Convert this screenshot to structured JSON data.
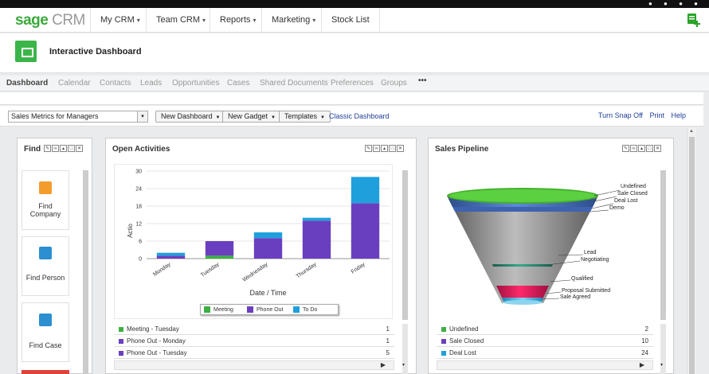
{
  "nav": {
    "logo_main": "sage",
    "logo_sub": "CRM",
    "items": [
      {
        "label": "My CRM",
        "chevron": "▾"
      },
      {
        "label": "Team CRM",
        "chevron": "▾"
      },
      {
        "label": "Reports",
        "chevron": "▾"
      },
      {
        "label": "Marketing",
        "chevron": "▾"
      },
      {
        "label": "Stock List",
        "chevron": ""
      }
    ],
    "add_icon": "add-list-icon"
  },
  "header": {
    "title": "Interactive Dashboard",
    "icon": "dashboard-icon"
  },
  "tabs": [
    "Dashboard",
    "Calendar",
    "Contacts",
    "Leads",
    "Opportunities",
    "Cases",
    "Shared Documents",
    "Preferences",
    "Groups",
    "•••"
  ],
  "toolbar": {
    "dashboard_select": "Sales Metrics for Managers",
    "new_dashboard": "New Dashboard",
    "new_gadget": "New Gadget",
    "templates": "Templates",
    "classic": "Classic Dashboard",
    "snap": "Turn Snap Off",
    "print": "Print",
    "help": "Help"
  },
  "find": {
    "title": "Find",
    "cards": [
      {
        "label_1": "Find",
        "label_2": "Company",
        "color": "#f39c2c",
        "icon": "company-icon"
      },
      {
        "label_1": "",
        "label_2": "Find Person",
        "color": "#2b8fd0",
        "icon": "person-icon"
      },
      {
        "label_1": "",
        "label_2": "Find Case",
        "color": "#2b8fd0",
        "icon": "case-icon"
      }
    ]
  },
  "activities": {
    "title": "Open Activities",
    "rows": [
      {
        "label": "Meeting - Tuesday",
        "value": "1",
        "color": "#3cb043"
      },
      {
        "label": "Phone Out - Monday",
        "value": "1",
        "color": "#6a3fbf"
      },
      {
        "label": "Phone Out - Tuesday",
        "value": "5",
        "color": "#6a3fbf"
      }
    ]
  },
  "pipeline": {
    "title": "Sales Pipeline",
    "labels": [
      "Undefined",
      "Sale Closed",
      "Deal Lost",
      "Demo",
      "Lead",
      "Negotiating",
      "Qualified",
      "Proposal Submitted",
      "Sale Agreed"
    ],
    "rows": [
      {
        "label": "Undefined",
        "value": "2",
        "color": "#3cb043"
      },
      {
        "label": "Sale Closed",
        "value": "10",
        "color": "#6a3fbf"
      },
      {
        "label": "Deal Lost",
        "value": "24",
        "color": "#1fa0dc"
      }
    ]
  },
  "chart_data": {
    "type": "bar",
    "stacked": true,
    "xlabel": "Date / Time",
    "ylabel": "Actio",
    "ylim": [
      0,
      30
    ],
    "yticks": [
      0,
      6,
      12,
      18,
      24,
      30
    ],
    "categories": [
      "Monday",
      "Tuesday",
      "Wednesday",
      "Thursday",
      "Friday"
    ],
    "series": [
      {
        "name": "Meeting",
        "color": "#3cb043",
        "values": [
          0,
          1,
          0,
          0,
          0
        ]
      },
      {
        "name": "Phone Out",
        "color": "#6a3fbf",
        "values": [
          1,
          5,
          7,
          13,
          19
        ]
      },
      {
        "name": "To Do",
        "color": "#1fa0dc",
        "values": [
          1,
          0,
          2,
          1,
          9
        ]
      }
    ]
  }
}
